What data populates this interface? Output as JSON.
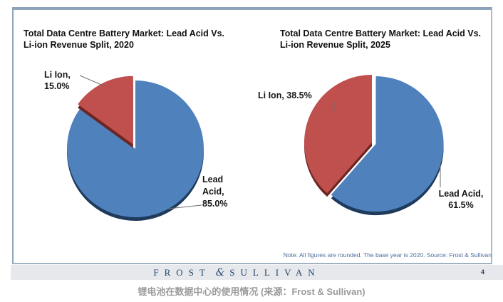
{
  "slide": {
    "note": "Note: All figures are rounded. The base year is 2020. Source: Frost & Sullivan",
    "footer": {
      "brand_first": "FROST",
      "ampersand": "&",
      "brand_second": "SULLIVAN",
      "page_number": "4"
    }
  },
  "caption": "锂电池在数据中心的使用情况 (来源：Frost & Sullivan)",
  "chart_data": [
    {
      "type": "pie",
      "title": "Total Data Centre Battery Market: Lead Acid Vs. Li-ion Revenue Split, 2020",
      "title_lines": [
        "Total Data Centre Battery Market: Lead Acid Vs.",
        "Li-ion Revenue Split, 2020"
      ],
      "categories": [
        "Lead Acid",
        "Li Ion"
      ],
      "values": [
        85.0,
        15.0
      ],
      "colors": [
        "#4f81bd",
        "#c0504d"
      ],
      "shadow_colors": [
        "#1e3b5c",
        "#6b2523"
      ],
      "exploded_category": "Li Ion",
      "start_angle_deg": 0,
      "direction": "clockwise",
      "legend_position": "none",
      "data_labels": {
        "li_ion_lines": [
          "Li Ion,",
          "15.0%"
        ],
        "lead_acid_lines": [
          "Lead",
          "Acid,",
          "85.0%"
        ]
      }
    },
    {
      "type": "pie",
      "title": "Total Data Centre Battery Market: Lead Acid Vs. Li-ion Revenue Split, 2025",
      "title_lines": [
        "Total Data Centre Battery Market: Lead Acid Vs.",
        "Li-ion Revenue Split, 2025"
      ],
      "categories": [
        "Lead Acid",
        "Li Ion"
      ],
      "values": [
        61.5,
        38.5
      ],
      "colors": [
        "#4f81bd",
        "#c0504d"
      ],
      "shadow_colors": [
        "#1e3b5c",
        "#6b2523"
      ],
      "exploded_category": "Lead Acid",
      "start_angle_deg": 0,
      "direction": "clockwise",
      "legend_position": "none",
      "data_labels": {
        "li_ion_lines": [
          "Li Ion, 38.5%"
        ],
        "lead_acid_lines": [
          "Lead Acid,",
          "61.5%"
        ]
      }
    }
  ]
}
